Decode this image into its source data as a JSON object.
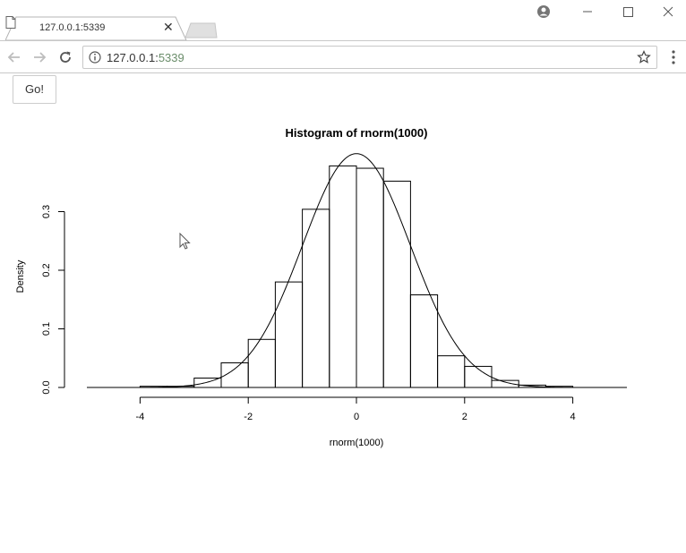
{
  "browser": {
    "tab_title": "127.0.0.1:5339",
    "url_host": "127.0.0.1:",
    "url_port": "5339"
  },
  "page": {
    "go_label": "Go!"
  },
  "chart_data": {
    "type": "bar",
    "title": "Histogram of rnorm(1000)",
    "xlabel": "rnorm(1000)",
    "ylabel": "Density",
    "xlim": [
      -5,
      5
    ],
    "ylim": [
      0,
      0.39
    ],
    "x_ticks": [
      -4,
      -2,
      0,
      2,
      4
    ],
    "y_ticks": [
      0.0,
      0.1,
      0.2,
      0.3
    ],
    "x_tick_labels": [
      "-4",
      "-2",
      "0",
      "2",
      "4"
    ],
    "y_tick_labels": [
      "0.0",
      "0.1",
      "0.2",
      "0.3"
    ],
    "bin_edges": [
      -4,
      -3.5,
      -3,
      -2.5,
      -2,
      -1.5,
      -1,
      -0.5,
      0,
      0.5,
      1,
      1.5,
      2,
      2.5,
      3,
      3.5,
      4
    ],
    "values": [
      0.002,
      0.002,
      0.016,
      0.042,
      0.082,
      0.18,
      0.304,
      0.378,
      0.374,
      0.352,
      0.158,
      0.054,
      0.036,
      0.012,
      0.004,
      0.002
    ],
    "curve": "normal density (mean 0, sd 1)",
    "grid": false
  }
}
